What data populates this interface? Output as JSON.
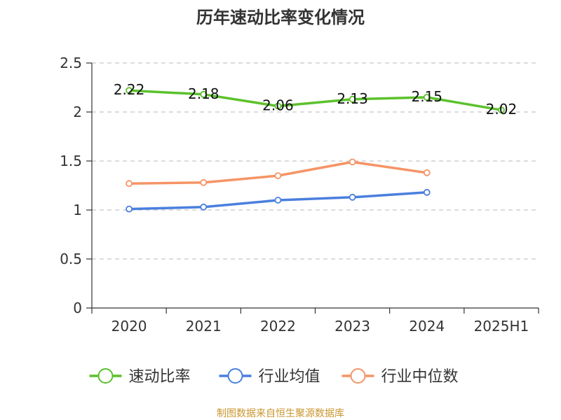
{
  "chart_data": {
    "type": "line",
    "title": "历年速动比率变化情况",
    "categories": [
      "2020",
      "2021",
      "2022",
      "2023",
      "2024",
      "2025H1"
    ],
    "y_ticks": [
      "0",
      "0.5",
      "1",
      "1.5",
      "2",
      "2.5"
    ],
    "ylim": [
      0,
      2.5
    ],
    "grid": "horizontal dashed",
    "legend_position": "bottom",
    "series": [
      {
        "name": "速动比率",
        "color": "#5cc12c",
        "values": [
          2.22,
          2.18,
          2.06,
          2.13,
          2.15,
          2.02
        ],
        "show_labels": true
      },
      {
        "name": "行业均值",
        "color": "#4a7fde",
        "values": [
          1.01,
          1.03,
          1.1,
          1.13,
          1.18,
          null
        ],
        "show_labels": false
      },
      {
        "name": "行业中位数",
        "color": "#f59466",
        "values": [
          1.27,
          1.28,
          1.35,
          1.49,
          1.38,
          null
        ],
        "show_labels": false
      }
    ],
    "data_labels": [
      "2.22",
      "2.18",
      "2.06",
      "2.13",
      "2.15",
      "2.02"
    ]
  },
  "source": "制图数据来自恒生聚源数据库"
}
